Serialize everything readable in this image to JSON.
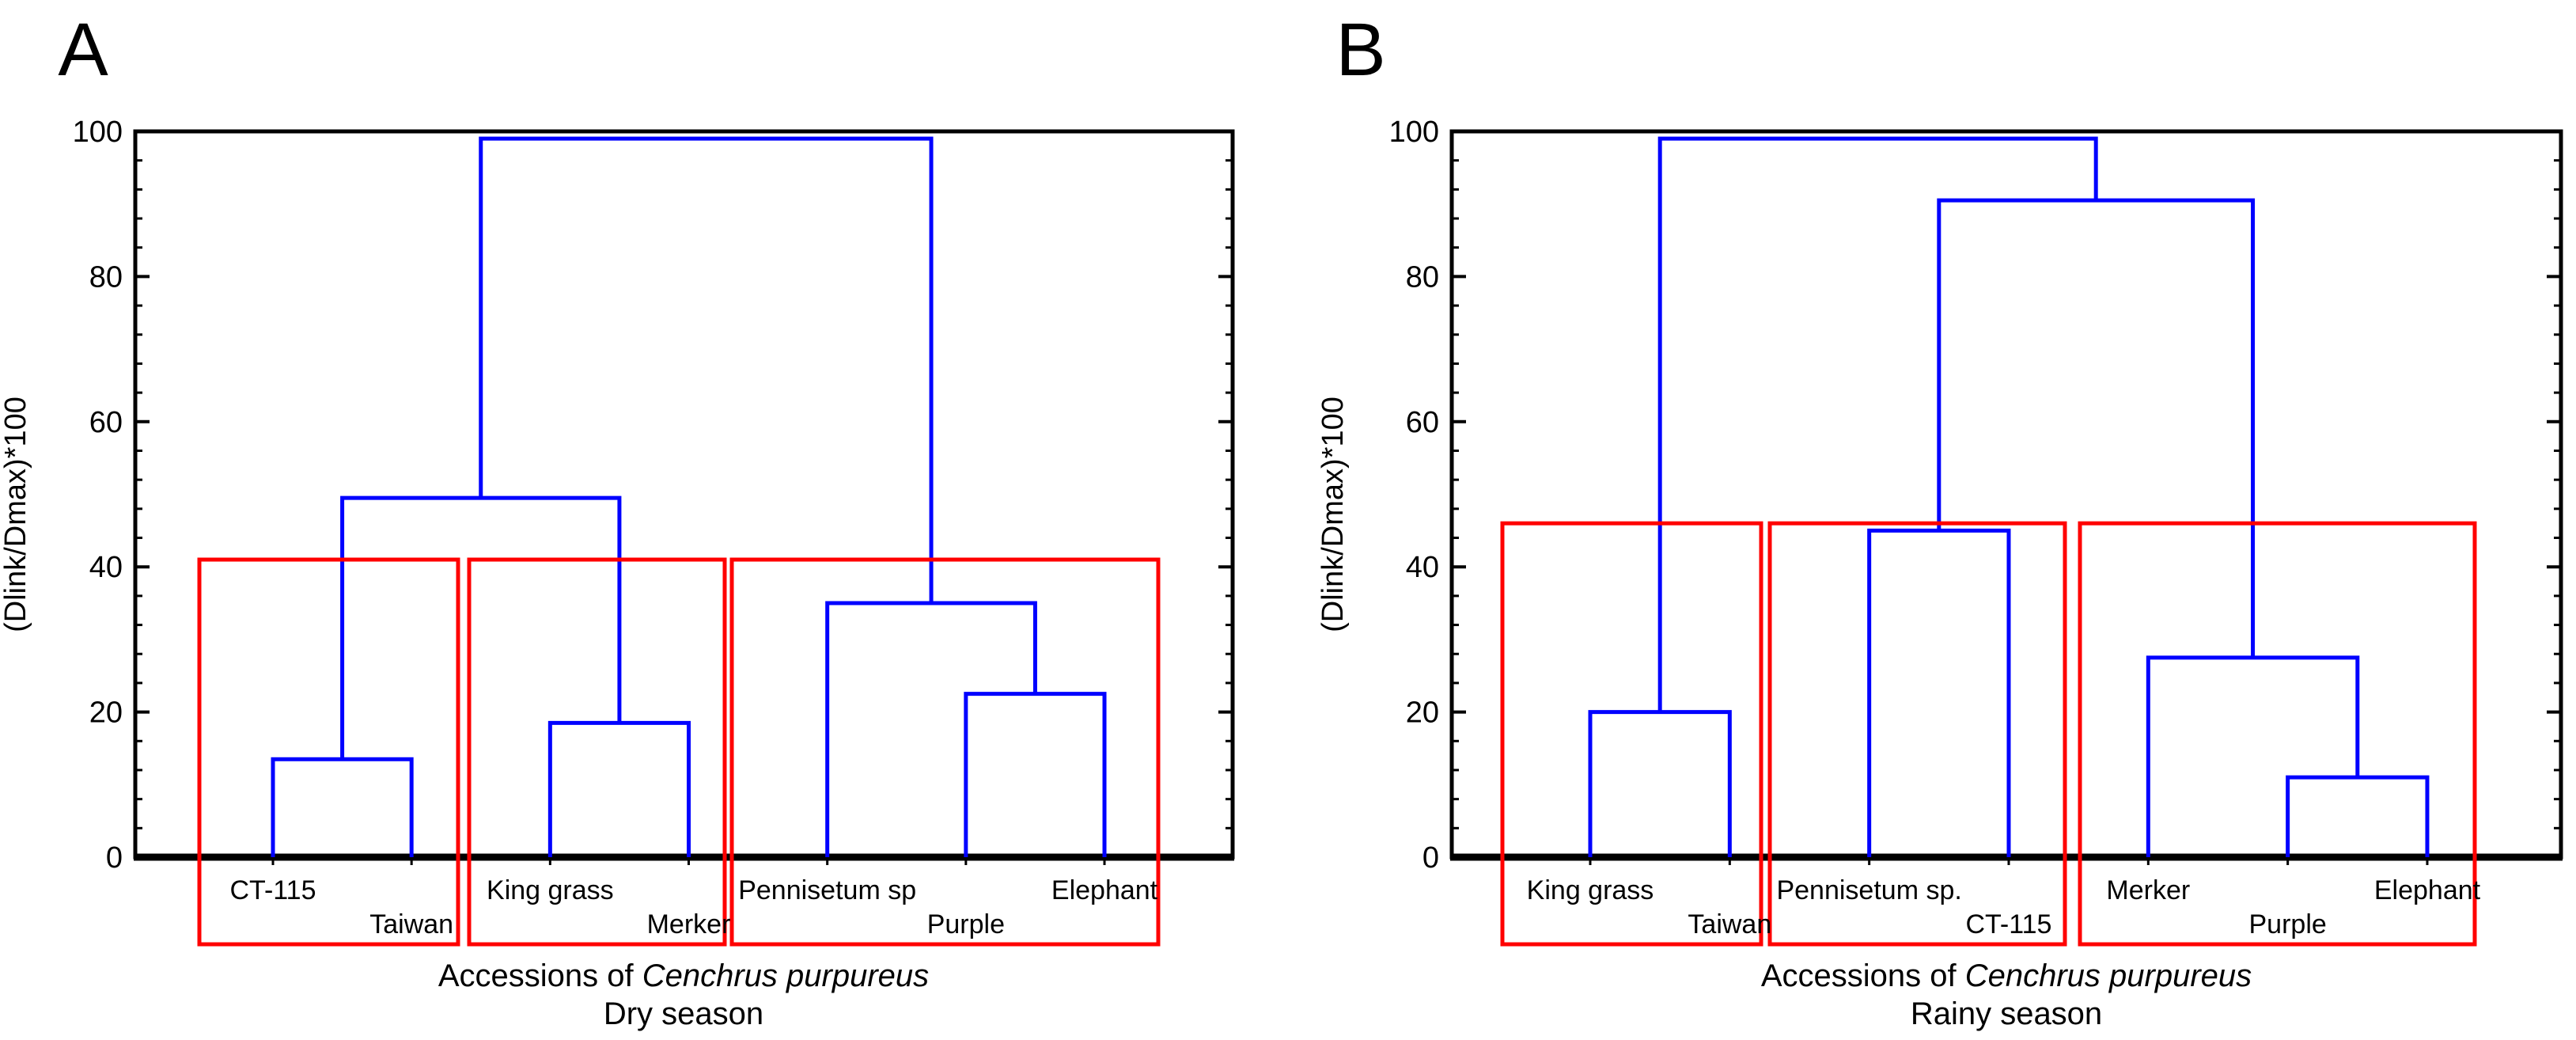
{
  "figure": {
    "description": "Two hierarchical clustering dendrograms (UPGMA style) of Cenchrus purpureus accessions, panel A dry season and panel B rainy season, with red rectangles outlining three clusters in each panel",
    "colors": {
      "tree_line": "#0000ff",
      "cluster_box": "#ff0000",
      "axis": "#000000",
      "background": "#ffffff"
    }
  },
  "chart_data": [
    {
      "type": "dendrogram",
      "panel_label": "A",
      "season": "Dry season",
      "xlabel_prefix": "Accessions of ",
      "xlabel_species": "Cenchrus purpureus",
      "ylabel": "(Dlink/Dmax)*100",
      "ylim": [
        0,
        100
      ],
      "yticks": [
        0,
        20,
        40,
        60,
        80,
        100
      ],
      "grid": "off",
      "leaves": [
        {
          "label": "CT-115",
          "row": "upper"
        },
        {
          "label": "Taiwan",
          "row": "lower"
        },
        {
          "label": "King grass",
          "row": "upper"
        },
        {
          "label": "Merker",
          "row": "lower"
        },
        {
          "label": "Pennisetum sp",
          "row": "upper"
        },
        {
          "label": "Purple",
          "row": "lower"
        },
        {
          "label": "Elephant",
          "row": "upper"
        }
      ],
      "merges": [
        {
          "a": "L0",
          "b": "L1",
          "height": 13.5
        },
        {
          "a": "L2",
          "b": "L3",
          "height": 18.5
        },
        {
          "a": "M0",
          "b": "M1",
          "height": 49.5
        },
        {
          "a": "L5",
          "b": "L6",
          "height": 22.5
        },
        {
          "a": "L4",
          "b": "M3",
          "height": 35
        },
        {
          "a": "M2",
          "b": "M4",
          "height": 99
        }
      ],
      "clusters": [
        {
          "members": [
            "CT-115",
            "Taiwan"
          ],
          "top": 41,
          "bottom": -12
        },
        {
          "members": [
            "King grass",
            "Merker"
          ],
          "top": 41,
          "bottom": -12
        },
        {
          "members": [
            "Pennisetum sp",
            "Purple",
            "Elephant"
          ],
          "top": 41,
          "bottom": -12
        }
      ]
    },
    {
      "type": "dendrogram",
      "panel_label": "B",
      "season": "Rainy season",
      "xlabel_prefix": "Accessions of ",
      "xlabel_species": "Cenchrus purpureus",
      "ylabel": "(Dlink/Dmax)*100",
      "ylim": [
        0,
        100
      ],
      "yticks": [
        0,
        20,
        40,
        60,
        80,
        100
      ],
      "grid": "off",
      "leaves": [
        {
          "label": "King grass",
          "row": "upper"
        },
        {
          "label": "Taiwan",
          "row": "lower"
        },
        {
          "label": "Pennisetum sp.",
          "row": "upper"
        },
        {
          "label": "CT-115",
          "row": "lower"
        },
        {
          "label": "Merker",
          "row": "upper"
        },
        {
          "label": "Purple",
          "row": "lower"
        },
        {
          "label": "Elephant",
          "row": "upper"
        }
      ],
      "merges": [
        {
          "a": "L0",
          "b": "L1",
          "height": 20
        },
        {
          "a": "L2",
          "b": "L3",
          "height": 45
        },
        {
          "a": "L5",
          "b": "L6",
          "height": 11
        },
        {
          "a": "L4",
          "b": "M2",
          "height": 27.5
        },
        {
          "a": "M1",
          "b": "M3",
          "height": 90.5
        },
        {
          "a": "M0",
          "b": "M4",
          "height": 99
        }
      ],
      "clusters": [
        {
          "members": [
            "King grass",
            "Taiwan"
          ],
          "top": 46,
          "bottom": -12
        },
        {
          "members": [
            "Pennisetum sp.",
            "CT-115"
          ],
          "top": 46,
          "bottom": -12
        },
        {
          "members": [
            "Merker",
            "Purple",
            "Elephant"
          ],
          "top": 46,
          "bottom": -12
        }
      ]
    }
  ]
}
